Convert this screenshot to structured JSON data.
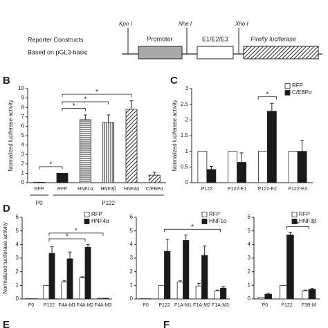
{
  "diagram": {
    "title_lines": [
      "Reporter Constructs",
      "Based on pGL3-basic"
    ],
    "sites": [
      "Kpn I",
      "Nhe I",
      "Xho I"
    ],
    "boxes": [
      "Promoter",
      "E1/E2/E3",
      "Firefly luciferase"
    ]
  },
  "extra_panel_labels": [
    "E",
    "F"
  ],
  "chart_data": [
    {
      "type": "bar",
      "panel_label": "B",
      "ylabel": "Normalized luciferase activity",
      "categories": [
        "RFP",
        "RFP",
        "HNF1α",
        "HNF3β",
        "HNF4α",
        "C/EBPα"
      ],
      "values": [
        0.05,
        1,
        6.7,
        6.4,
        7.8,
        0.8
      ],
      "errors": [
        0,
        0,
        0.5,
        0.8,
        0.9,
        0.3
      ],
      "fills": [
        "white",
        "black",
        "hstripe",
        "vstripe",
        "dstripe",
        "dstripe"
      ],
      "groups": [
        {
          "label": "P0",
          "span": [
            0,
            0
          ]
        },
        {
          "label": "P122",
          "span": [
            1,
            5
          ]
        }
      ],
      "annotations": [
        {
          "text": "*",
          "from": 0,
          "to": 1
        },
        {
          "text": "*",
          "from": 1,
          "to": 2
        },
        {
          "text": "*",
          "from": 1,
          "to": 3
        },
        {
          "text": "*",
          "from": 1,
          "to": 4
        }
      ],
      "ylim": [
        0,
        10
      ],
      "yticks": [
        0,
        1,
        2,
        3,
        4,
        5,
        6,
        7,
        8,
        9,
        10
      ]
    },
    {
      "type": "bar",
      "panel_label": "C",
      "ylabel": "Normalized luciferase activity",
      "categories": [
        "P122",
        "P122-E1",
        "P122-E2",
        "P122-E3"
      ],
      "series": [
        {
          "name": "RFP",
          "color": "#ffffff",
          "values": [
            1,
            1,
            1,
            1
          ],
          "errors": [
            0,
            0,
            0,
            0
          ]
        },
        {
          "name": "C/EBPα",
          "color": "#1a1a1a",
          "values": [
            0.42,
            0.65,
            2.28,
            1.0
          ],
          "errors": [
            0.1,
            0.3,
            0.25,
            0.35
          ]
        }
      ],
      "annotations": [
        {
          "text": "*",
          "from": 2,
          "to": 2
        }
      ],
      "legend": "upper right",
      "ylim": [
        0,
        3
      ],
      "yticks": [
        0,
        0.5,
        1,
        1.5,
        2,
        2.5,
        3
      ]
    },
    {
      "type": "bar",
      "panel_label": "D",
      "ylabel": "Normalized luciferase activity",
      "categories": [
        "P0",
        "P122",
        "F4A-M1",
        "F4A-M2",
        "F4A-M3"
      ],
      "series": [
        {
          "name": "RFP",
          "color": "#ffffff",
          "values": [
            0.02,
            1,
            1.25,
            1.55,
            0.05
          ],
          "errors": [
            0,
            0,
            0.08,
            0.08,
            0
          ]
        },
        {
          "name": "HNF4α",
          "color": "#1a1a1a",
          "values": [
            0.02,
            3.35,
            2.95,
            3.8,
            0.05
          ],
          "errors": [
            0,
            0.5,
            0.5,
            0.2,
            0
          ]
        }
      ],
      "annotations": [
        {
          "text": "*",
          "from": 1,
          "to": 3
        },
        {
          "text": "*",
          "from": 1,
          "to": 4
        }
      ],
      "legend": "upper right",
      "ylim": [
        0,
        6
      ],
      "yticks": [
        0,
        1,
        2,
        3,
        4,
        5,
        6
      ]
    },
    {
      "type": "bar",
      "categories": [
        "P0",
        "P122",
        "F1A-M1",
        "F1A-M2",
        "F1A-M3"
      ],
      "series": [
        {
          "name": "RFP",
          "color": "#ffffff",
          "values": [
            0.02,
            1,
            1.25,
            0.95,
            0.6
          ],
          "errors": [
            0,
            0,
            0.08,
            0.2,
            0.05
          ]
        },
        {
          "name": "HNF1α",
          "color": "#1a1a1a",
          "values": [
            0.02,
            3.5,
            4.3,
            3.2,
            0.8
          ],
          "errors": [
            0,
            0.9,
            0.4,
            0.7,
            0.1
          ]
        }
      ],
      "annotations": [
        {
          "text": "*",
          "from": 1,
          "to": 4
        }
      ],
      "legend": "upper right",
      "ylim": [
        0,
        6
      ],
      "yticks": [
        0,
        1,
        2,
        3,
        4,
        5,
        6
      ]
    },
    {
      "type": "bar",
      "categories": [
        "P0",
        "P122",
        "F3B-M"
      ],
      "series": [
        {
          "name": "RFP",
          "color": "#ffffff",
          "values": [
            0.1,
            1,
            0.6
          ],
          "errors": [
            0,
            0,
            0.05
          ]
        },
        {
          "name": "HNF3β",
          "color": "#1a1a1a",
          "values": [
            0.35,
            4.7,
            0.7
          ],
          "errors": [
            0.08,
            0.2,
            0.08
          ]
        }
      ],
      "annotations": [
        {
          "text": "*",
          "from": 1,
          "to": 2
        }
      ],
      "legend": "upper right",
      "ylim": [
        0,
        6
      ],
      "yticks": [
        0,
        1,
        2,
        3,
        4,
        5,
        6
      ]
    }
  ]
}
